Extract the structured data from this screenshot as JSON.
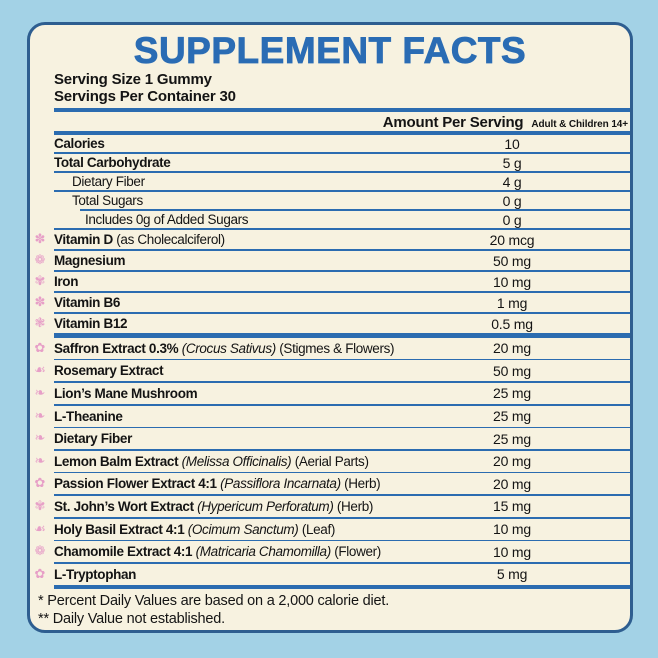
{
  "title": "SUPPLEMENT FACTS",
  "serving": {
    "size": "Serving Size 1 Gummy",
    "per_container": "Servings Per Container 30"
  },
  "header": {
    "amount": "Amount Per Serving",
    "audience": "Adult & Children 14+"
  },
  "table": {
    "sections": [
      {
        "rows": [
          {
            "group": "nutrient",
            "name": "Calories",
            "amount": "10",
            "bold": true,
            "indent": 0
          },
          {
            "group": "nutrient",
            "name": "Total Carbohydrate",
            "amount": "5 g",
            "bold": true,
            "indent": 0
          },
          {
            "group": "nutrient",
            "name": "Dietary Fiber",
            "amount": "4 g",
            "bold": false,
            "indent": 1
          },
          {
            "group": "nutrient",
            "name": "Total Sugars",
            "amount": "0 g",
            "bold": false,
            "indent": 1,
            "sep_indent": true
          },
          {
            "group": "nutrient",
            "name": "Includes 0g of Added Sugars",
            "amount": "0 g",
            "bold": false,
            "indent": 2
          },
          {
            "group": "vitamin",
            "name": "Vitamin D",
            "note": "(as Cholecalciferol)",
            "amount": "20 mcg",
            "bold": true,
            "icon": "✽",
            "icon_name": "flower-icon"
          },
          {
            "group": "vitamin",
            "name": "Magnesium",
            "amount": "50 mg",
            "bold": true,
            "icon": "❁",
            "icon_name": "flower-icon"
          },
          {
            "group": "vitamin",
            "name": "Iron",
            "amount": "10 mg",
            "bold": true,
            "icon": "✾",
            "icon_name": "flower-icon"
          },
          {
            "group": "vitamin",
            "name": "Vitamin B6",
            "amount": "1 mg",
            "bold": true,
            "icon": "✽",
            "icon_name": "flower-icon"
          },
          {
            "group": "vitamin",
            "name": "Vitamin B12",
            "amount": "0.5 mg",
            "bold": true,
            "icon": "❃",
            "icon_name": "flower-icon"
          }
        ]
      },
      {
        "rows": [
          {
            "group": "herbal",
            "name": "Saffron Extract 0.3%",
            "latin": "(Crocus Sativus)",
            "note": "(Stigmes & Flowers)",
            "amount": "20 mg",
            "bold": true,
            "icon": "✿",
            "icon_name": "flower-icon"
          },
          {
            "group": "herbal",
            "name": "Rosemary Extract",
            "amount": "50 mg",
            "bold": true,
            "icon": "☙",
            "icon_name": "leaf-icon"
          },
          {
            "group": "herbal",
            "name": "Lion’s Mane Mushroom",
            "amount": "25 mg",
            "bold": true,
            "icon": "❧",
            "icon_name": "leaf-icon"
          },
          {
            "group": "herbal",
            "name": "L-Theanine",
            "amount": "25 mg",
            "bold": true,
            "icon": "❧",
            "icon_name": "leaf-icon"
          },
          {
            "group": "herbal",
            "name": "Dietary Fiber",
            "amount": "25 mg",
            "bold": true,
            "icon": "❧",
            "icon_name": "leaf-icon"
          },
          {
            "group": "herbal",
            "name": "Lemon Balm Extract",
            "latin": "(Melissa Officinalis)",
            "note": "(Aerial Parts)",
            "amount": "20 mg",
            "bold": true,
            "icon": "❧",
            "icon_name": "leaf-icon"
          },
          {
            "group": "herbal",
            "name": "Passion Flower Extract 4:1",
            "latin": "(Passiflora Incarnata)",
            "note": "(Herb)",
            "amount": "20 mg",
            "bold": true,
            "icon": "✿",
            "icon_name": "flower-icon"
          },
          {
            "group": "herbal",
            "name": "St. John’s Wort Extract",
            "latin": "(Hypericum Perforatum)",
            "note": "(Herb)",
            "amount": "15 mg",
            "bold": true,
            "icon": "✾",
            "icon_name": "flower-icon"
          },
          {
            "group": "herbal",
            "name": "Holy Basil Extract 4:1",
            "latin": "(Ocimum Sanctum)",
            "note": "(Leaf)",
            "amount": "10 mg",
            "bold": true,
            "icon": "☙",
            "icon_name": "leaf-icon"
          },
          {
            "group": "herbal",
            "name": "Chamomile Extract 4:1",
            "latin": "(Matricaria Chamomilla)",
            "note": "(Flower)",
            "amount": "10 mg",
            "bold": true,
            "icon": "❁",
            "icon_name": "flower-icon"
          },
          {
            "group": "herbal",
            "name": "L-Tryptophan",
            "amount": "5 mg",
            "bold": true,
            "icon": "✿",
            "icon_name": "flower-icon"
          }
        ]
      }
    ]
  },
  "footnotes": [
    "* Percent Daily Values are based on a 2,000 calorie diet.",
    "** Daily Value not established."
  ],
  "colors": {
    "background": "#A3D2E6",
    "panel": "#F7F2E0",
    "panel_border": "#2E5E90",
    "accent_blue": "#2A6CB4",
    "rule_blue": "#2B6CB0",
    "text": "#141414",
    "pink": "#E79FC7"
  }
}
